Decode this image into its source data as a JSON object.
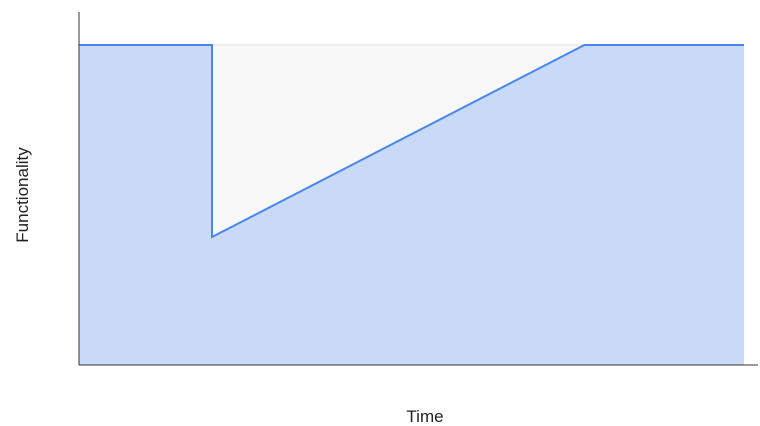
{
  "chart_data": {
    "type": "area",
    "title": "",
    "xlabel": "Time",
    "ylabel": "Functionality",
    "xlim": [
      0,
      100
    ],
    "ylim": [
      0,
      100
    ],
    "grid": false,
    "legend": "none",
    "x": [
      0,
      20,
      20,
      76,
      100
    ],
    "series": [
      {
        "name": "",
        "values": [
          100,
          100,
          40,
          100,
          100
        ],
        "line_color": "#4a86e8",
        "fill_color": "#c9daf8"
      }
    ],
    "baseline": {
      "value": 100,
      "color": "#e0e0e0",
      "fill_color": "#f8f8f8"
    },
    "axis_color": "#333333"
  }
}
